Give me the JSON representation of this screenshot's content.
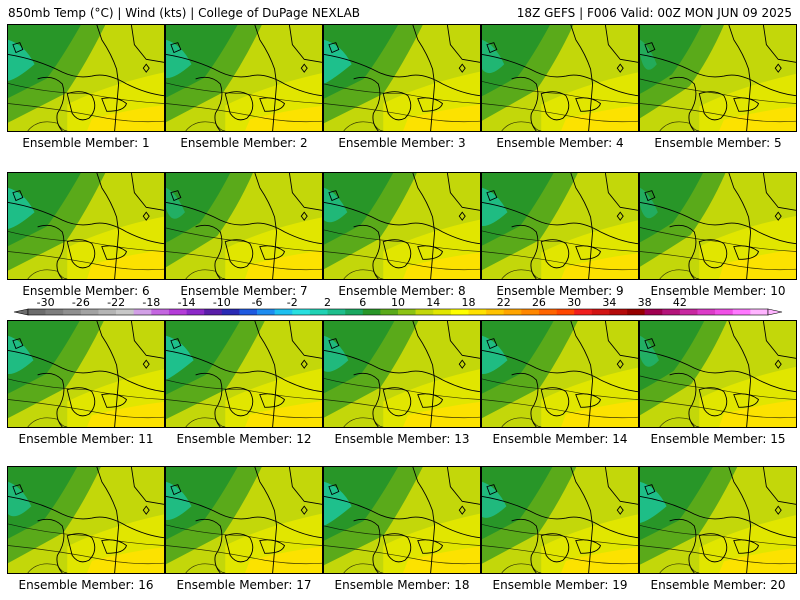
{
  "header": {
    "left": "850mb Temp (°C) | Wind (kts) | College of DuPage NEXLAB",
    "right": "18Z GEFS | F006 Valid: 00Z MON JUN 09 2025"
  },
  "members": [
    {
      "label": "Ensemble Member: 1",
      "cold": 0.95,
      "warm": 0.45
    },
    {
      "label": "Ensemble Member: 2",
      "cold": 0.9,
      "warm": 0.4
    },
    {
      "label": "Ensemble Member: 3",
      "cold": 1.0,
      "warm": 0.5
    },
    {
      "label": "Ensemble Member: 4",
      "cold": 0.75,
      "warm": 0.45
    },
    {
      "label": "Ensemble Member: 5",
      "cold": 0.5,
      "warm": 0.35
    },
    {
      "label": "Ensemble Member: 6",
      "cold": 0.95,
      "warm": 0.7
    },
    {
      "label": "Ensemble Member: 7",
      "cold": 0.6,
      "warm": 0.65
    },
    {
      "label": "Ensemble Member: 8",
      "cold": 0.8,
      "warm": 0.5
    },
    {
      "label": "Ensemble Member: 9",
      "cold": 0.9,
      "warm": 0.45
    },
    {
      "label": "Ensemble Member: 10",
      "cold": 0.55,
      "warm": 0.75
    },
    {
      "label": "Ensemble Member: 11",
      "cold": 0.9,
      "warm": 0.4
    },
    {
      "label": "Ensemble Member: 12",
      "cold": 1.0,
      "warm": 0.45
    },
    {
      "label": "Ensemble Member: 13",
      "cold": 0.85,
      "warm": 0.4
    },
    {
      "label": "Ensemble Member: 14",
      "cold": 0.9,
      "warm": 0.5
    },
    {
      "label": "Ensemble Member: 15",
      "cold": 0.6,
      "warm": 0.55
    },
    {
      "label": "Ensemble Member: 16",
      "cold": 0.8,
      "warm": 0.45
    },
    {
      "label": "Ensemble Member: 17",
      "cold": 0.9,
      "warm": 0.5
    },
    {
      "label": "Ensemble Member: 18",
      "cold": 1.0,
      "warm": 0.5
    },
    {
      "label": "Ensemble Member: 19",
      "cold": 0.85,
      "warm": 0.45
    },
    {
      "label": "Ensemble Member: 20",
      "cold": 0.95,
      "warm": 0.4
    }
  ],
  "colorbar": {
    "ticks": [
      "-30",
      "-26",
      "-22",
      "-18",
      "-14",
      "-10",
      "-6",
      "-2",
      "2",
      "6",
      "10",
      "14",
      "18",
      "22",
      "26",
      "30",
      "34",
      "38",
      "42"
    ],
    "colors": [
      "#6c6c6c",
      "#7e7e7e",
      "#909090",
      "#a2a2a2",
      "#b5b5b5",
      "#c8c8c8",
      "#d2a0e6",
      "#c466e0",
      "#b43cd8",
      "#8c28c8",
      "#5a1ea8",
      "#2a2ab4",
      "#1f5ae0",
      "#1e8cf0",
      "#1ec0f0",
      "#28e0e0",
      "#20d2b4",
      "#1ebe8c",
      "#1aa860",
      "#289628",
      "#5aaa1a",
      "#8cc314",
      "#c3d70a",
      "#e1e600",
      "#ffff00",
      "#ffe100",
      "#ffc300",
      "#ffa500",
      "#ff8700",
      "#ff6400",
      "#ff4600",
      "#f01e1e",
      "#d21414",
      "#b40a0a",
      "#960000",
      "#a00050",
      "#b4147a",
      "#c828a0",
      "#dc3cc8",
      "#f050e6",
      "#ff78ff",
      "#ffb4ff"
    ]
  },
  "map_colors": {
    "cold_strong": "#1ec08c",
    "cold": "#289628",
    "mid": "#5aaa1a",
    "base": "#c3d70a",
    "warm": "#e1e600",
    "hot": "#ffe100"
  }
}
